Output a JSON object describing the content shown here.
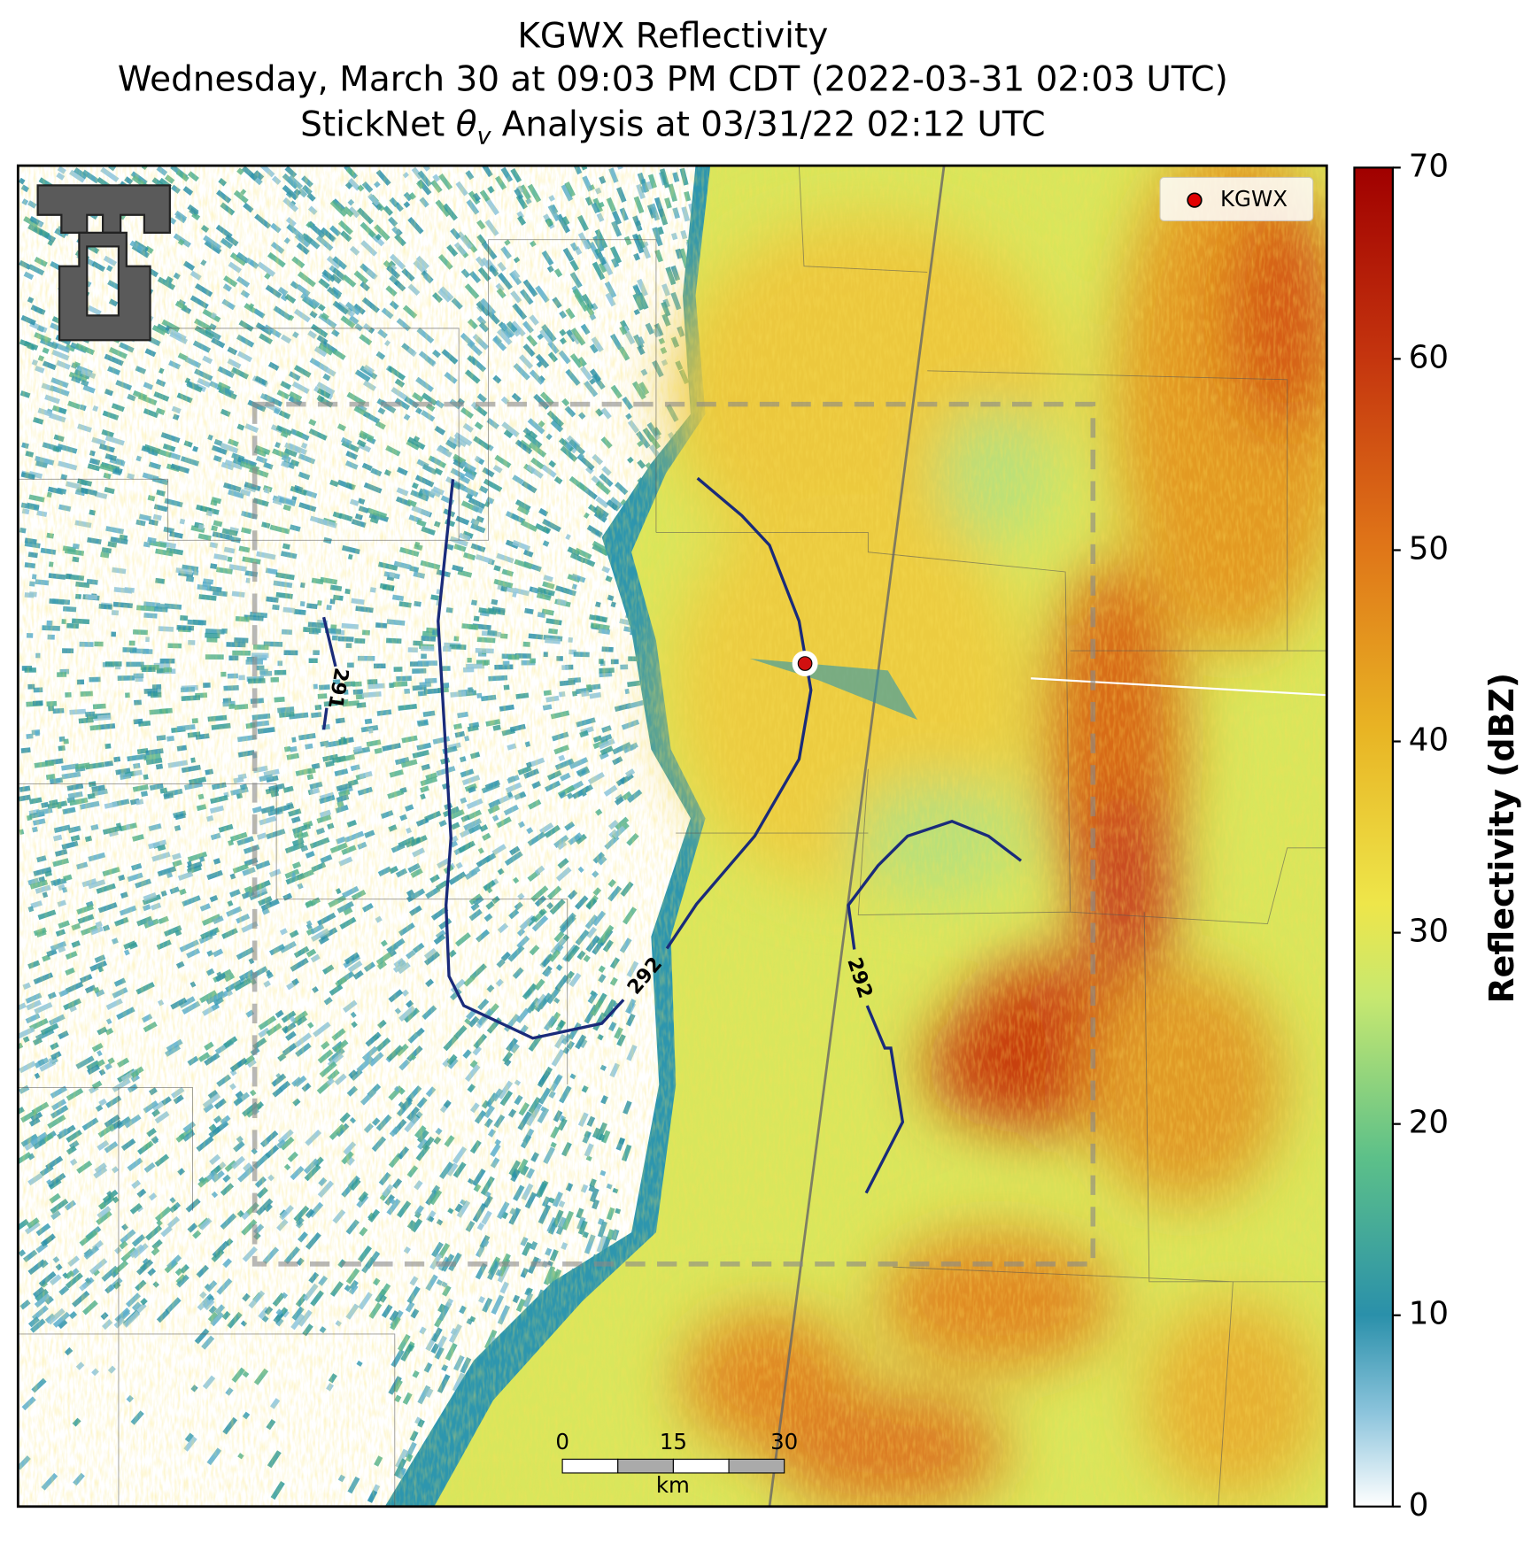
{
  "title_lines": [
    "KGWX Reflectivity",
    "Wednesday, March 30 at 09:03 PM CDT (2022-03-31 02:03 UTC)"
  ],
  "title_line3": {
    "prefix": "StickNet",
    "symbol": "θ",
    "subscript": "v",
    "suffix": "Analysis at 03/31/22 02:12 UTC"
  },
  "colorbar": {
    "label": "Reflectivity (dBZ)",
    "lim": [
      0,
      70
    ],
    "ticks": [
      0,
      10,
      20,
      30,
      40,
      50,
      60,
      70
    ]
  },
  "legend": {
    "label": "KGWX"
  },
  "scale_bar": {
    "ticks": [
      0,
      15,
      30
    ],
    "unit": "km"
  },
  "contours": [
    291,
    292,
    292
  ]
}
